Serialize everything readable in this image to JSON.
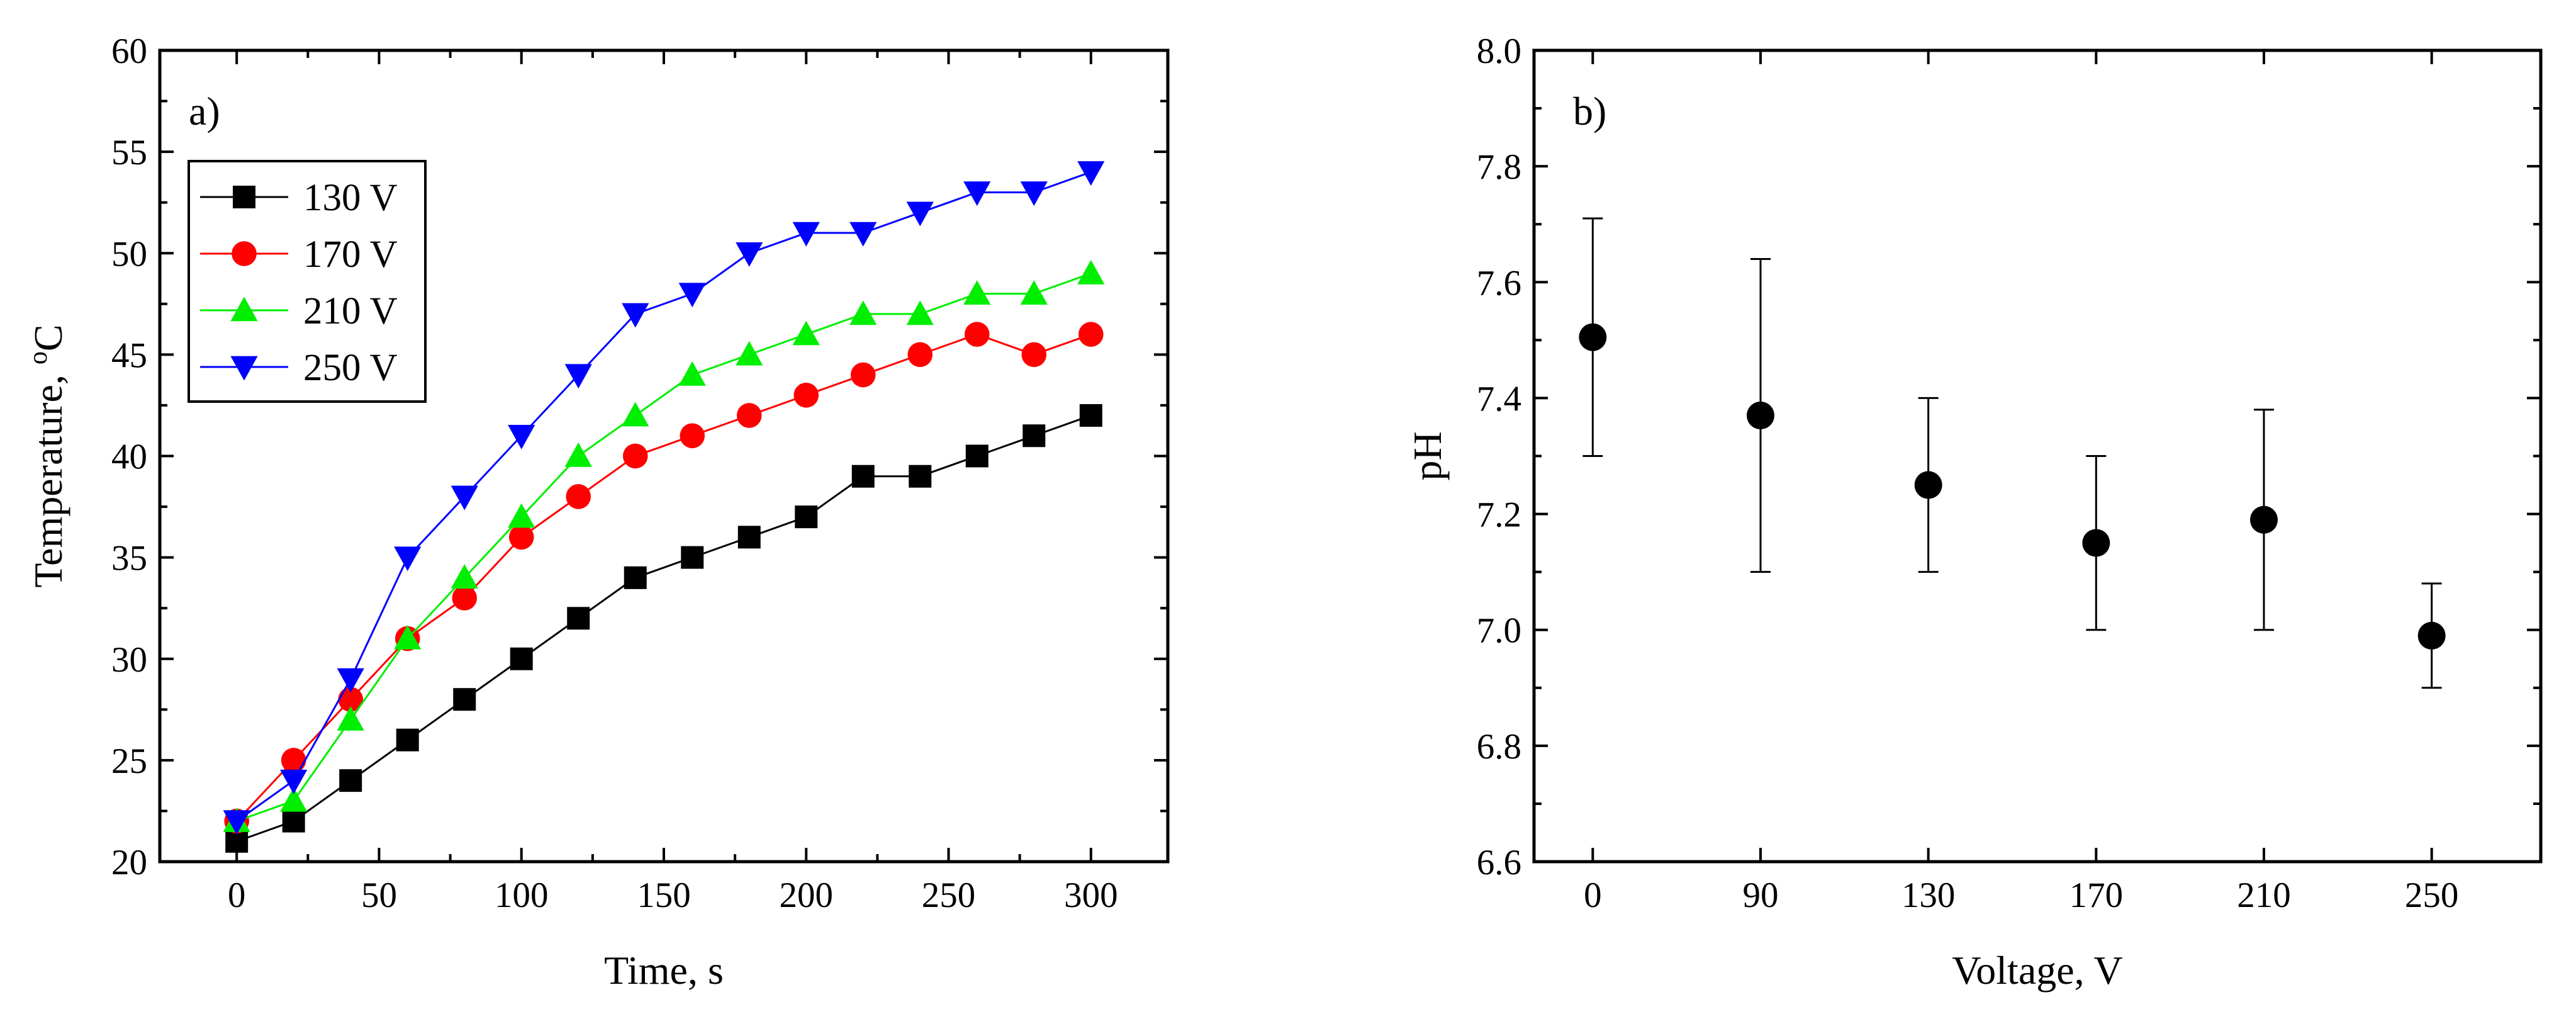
{
  "chart_data": [
    {
      "type": "line",
      "panel_label": "a)",
      "xlabel": "Time, s",
      "ylabel": "Temperature, ",
      "ylabel_sup": "o",
      "ylabel_unit": "C",
      "xlim": [
        -27,
        327
      ],
      "ylim": [
        20,
        60
      ],
      "xticks": [
        0,
        50,
        100,
        150,
        200,
        250,
        300
      ],
      "yticks": [
        20,
        25,
        30,
        35,
        40,
        45,
        50,
        55,
        60
      ],
      "legend_position": "upper-left",
      "x": [
        0,
        20,
        40,
        60,
        80,
        100,
        120,
        140,
        160,
        180,
        200,
        220,
        240,
        260,
        280,
        300
      ],
      "series": [
        {
          "name": "130 V",
          "color": "#000000",
          "marker": "square",
          "values": [
            21,
            22,
            24,
            26,
            28,
            30,
            32,
            34,
            35,
            36,
            37,
            39,
            39,
            40,
            41,
            42
          ]
        },
        {
          "name": "170 V",
          "color": "#ff0000",
          "marker": "circle",
          "values": [
            22,
            25,
            28,
            31,
            33,
            36,
            38,
            40,
            41,
            42,
            43,
            44,
            45,
            46,
            45,
            46
          ]
        },
        {
          "name": "210 V",
          "color": "#00ee00",
          "marker": "triangle-up",
          "values": [
            22,
            23,
            27,
            31,
            34,
            37,
            40,
            42,
            44,
            45,
            46,
            47,
            47,
            48,
            48,
            49
          ]
        },
        {
          "name": "250 V",
          "color": "#0000ff",
          "marker": "triangle-down",
          "values": [
            22,
            24,
            29,
            35,
            38,
            41,
            44,
            47,
            48,
            50,
            51,
            51,
            52,
            53,
            53,
            54
          ]
        }
      ]
    },
    {
      "type": "scatter",
      "panel_label": "b)",
      "xlabel": "Voltage, V",
      "ylabel": "pH",
      "ylim": [
        6.6,
        8.0
      ],
      "yticks": [
        "6.6",
        "6.8",
        "7.0",
        "7.2",
        "7.4",
        "7.6",
        "7.8",
        "8.0"
      ],
      "categories": [
        "0",
        "90",
        "130",
        "170",
        "210",
        "250"
      ],
      "values": [
        7.505,
        7.37,
        7.25,
        7.15,
        7.19,
        6.99
      ],
      "error_low": [
        7.3,
        7.1,
        7.1,
        7.0,
        7.0,
        6.9
      ],
      "error_high": [
        7.71,
        7.64,
        7.4,
        7.3,
        7.38,
        7.08
      ],
      "color": "#000000",
      "marker": "circle"
    }
  ]
}
